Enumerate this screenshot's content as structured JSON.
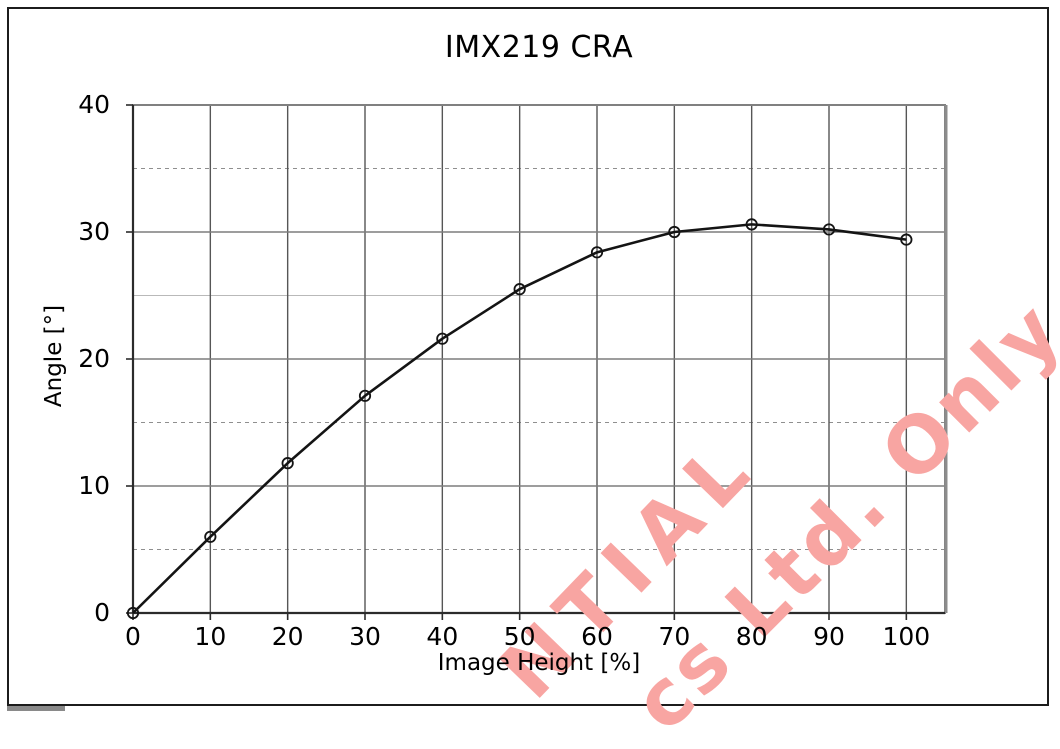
{
  "chart_data": {
    "type": "line",
    "title": "IMX219 CRA",
    "xlabel": "Image Height [%]",
    "ylabel": "Angle [°]",
    "x": [
      0,
      10,
      20,
      30,
      40,
      50,
      60,
      70,
      80,
      90,
      100
    ],
    "series": [
      {
        "name": "CRA",
        "values": [
          0,
          6.0,
          11.8,
          17.1,
          21.6,
          25.5,
          28.4,
          30.0,
          30.6,
          30.2,
          29.4
        ]
      }
    ],
    "xlim": [
      0,
      105
    ],
    "ylim": [
      0,
      40
    ],
    "x_ticks": [
      0,
      10,
      20,
      30,
      40,
      50,
      60,
      70,
      80,
      90,
      100
    ],
    "y_ticks": [
      0,
      10,
      20,
      30,
      40
    ],
    "y_minor_dashed": [
      5,
      15,
      35
    ],
    "y_minor_solid": [
      25
    ],
    "grid": "on",
    "legend": "none",
    "marker": "open-circle",
    "line_color": "#141414",
    "gridline_color_vertical": "#565656",
    "gridline_color_horizontal": "#7d7d7d",
    "axis_color": "#2b2b2b",
    "plot_border_color": "#808080"
  },
  "watermark": {
    "color": "#F8A5A2",
    "fragments": [
      {
        "text": "NTIAL"
      },
      {
        "text": "cs Ltd. Only"
      }
    ]
  }
}
